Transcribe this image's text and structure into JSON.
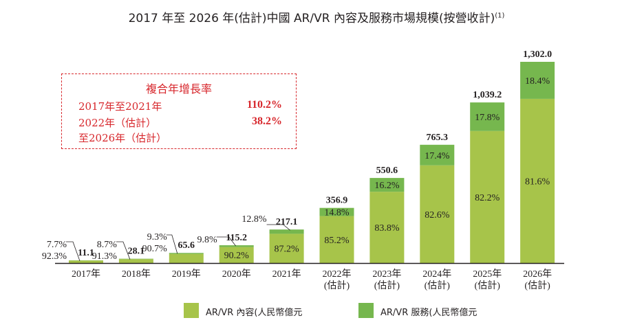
{
  "title": "2017 年至 2026 年(估計)中國 AR/VR 內容及服務市場規模(按營收計)",
  "title_note": "(1)",
  "cagr": {
    "heading": "複合年增長率",
    "rows": [
      {
        "label": "2017年至2021年",
        "value": "110.2%"
      },
      {
        "label": "2022年（估計）",
        "value": "38.2%"
      },
      {
        "label": "至2026年（估計）",
        "value": ""
      }
    ]
  },
  "legend": [
    {
      "label": "AR/VR 內容(人民幣億元",
      "color": "#a7c44a"
    },
    {
      "label": "AR/VR 服務(人民幣億元",
      "color": "#76b74e"
    }
  ],
  "chart_data": {
    "type": "bar",
    "stacked": true,
    "unit": "人民幣億元",
    "categories": [
      "2017年",
      "2018年",
      "2019年",
      "2020年",
      "2021年",
      "2022年",
      "2023年",
      "2024年",
      "2025年",
      "2026年"
    ],
    "category_sublabels": [
      "",
      "",
      "",
      "",
      "",
      "(估計)",
      "(估計)",
      "(估計)",
      "(估計)",
      "(估計)"
    ],
    "totals": [
      11.1,
      28.1,
      65.6,
      115.2,
      217.1,
      356.9,
      550.6,
      765.3,
      1039.2,
      1302.0
    ],
    "total_labels": [
      "11.1",
      "28.1",
      "65.6",
      "115.2",
      "217.1",
      "356.9",
      "550.6",
      "765.3",
      "1,039.2",
      "1,302.0"
    ],
    "series": [
      {
        "name": "AR/VR 內容",
        "color": "#a7c44a",
        "share_labels": [
          "92.3%",
          "91.3%",
          "90.7%",
          "90.2%",
          "87.2%",
          "85.2%",
          "83.8%",
          "82.6%",
          "82.2%",
          "81.6%"
        ],
        "shares": [
          92.3,
          91.3,
          90.7,
          90.2,
          87.2,
          85.2,
          83.8,
          82.6,
          82.2,
          81.6
        ]
      },
      {
        "name": "AR/VR 服務",
        "color": "#76b74e",
        "share_labels": [
          "7.7%",
          "8.7%",
          "9.3%",
          "9.8%",
          "12.8%",
          "14.8%",
          "16.2%",
          "17.4%",
          "17.8%",
          "18.4%"
        ],
        "shares": [
          7.7,
          8.7,
          9.3,
          9.8,
          12.8,
          14.8,
          16.2,
          17.4,
          17.8,
          18.4
        ]
      }
    ],
    "ylim": [
      0,
      1302.0
    ],
    "grid": false
  }
}
